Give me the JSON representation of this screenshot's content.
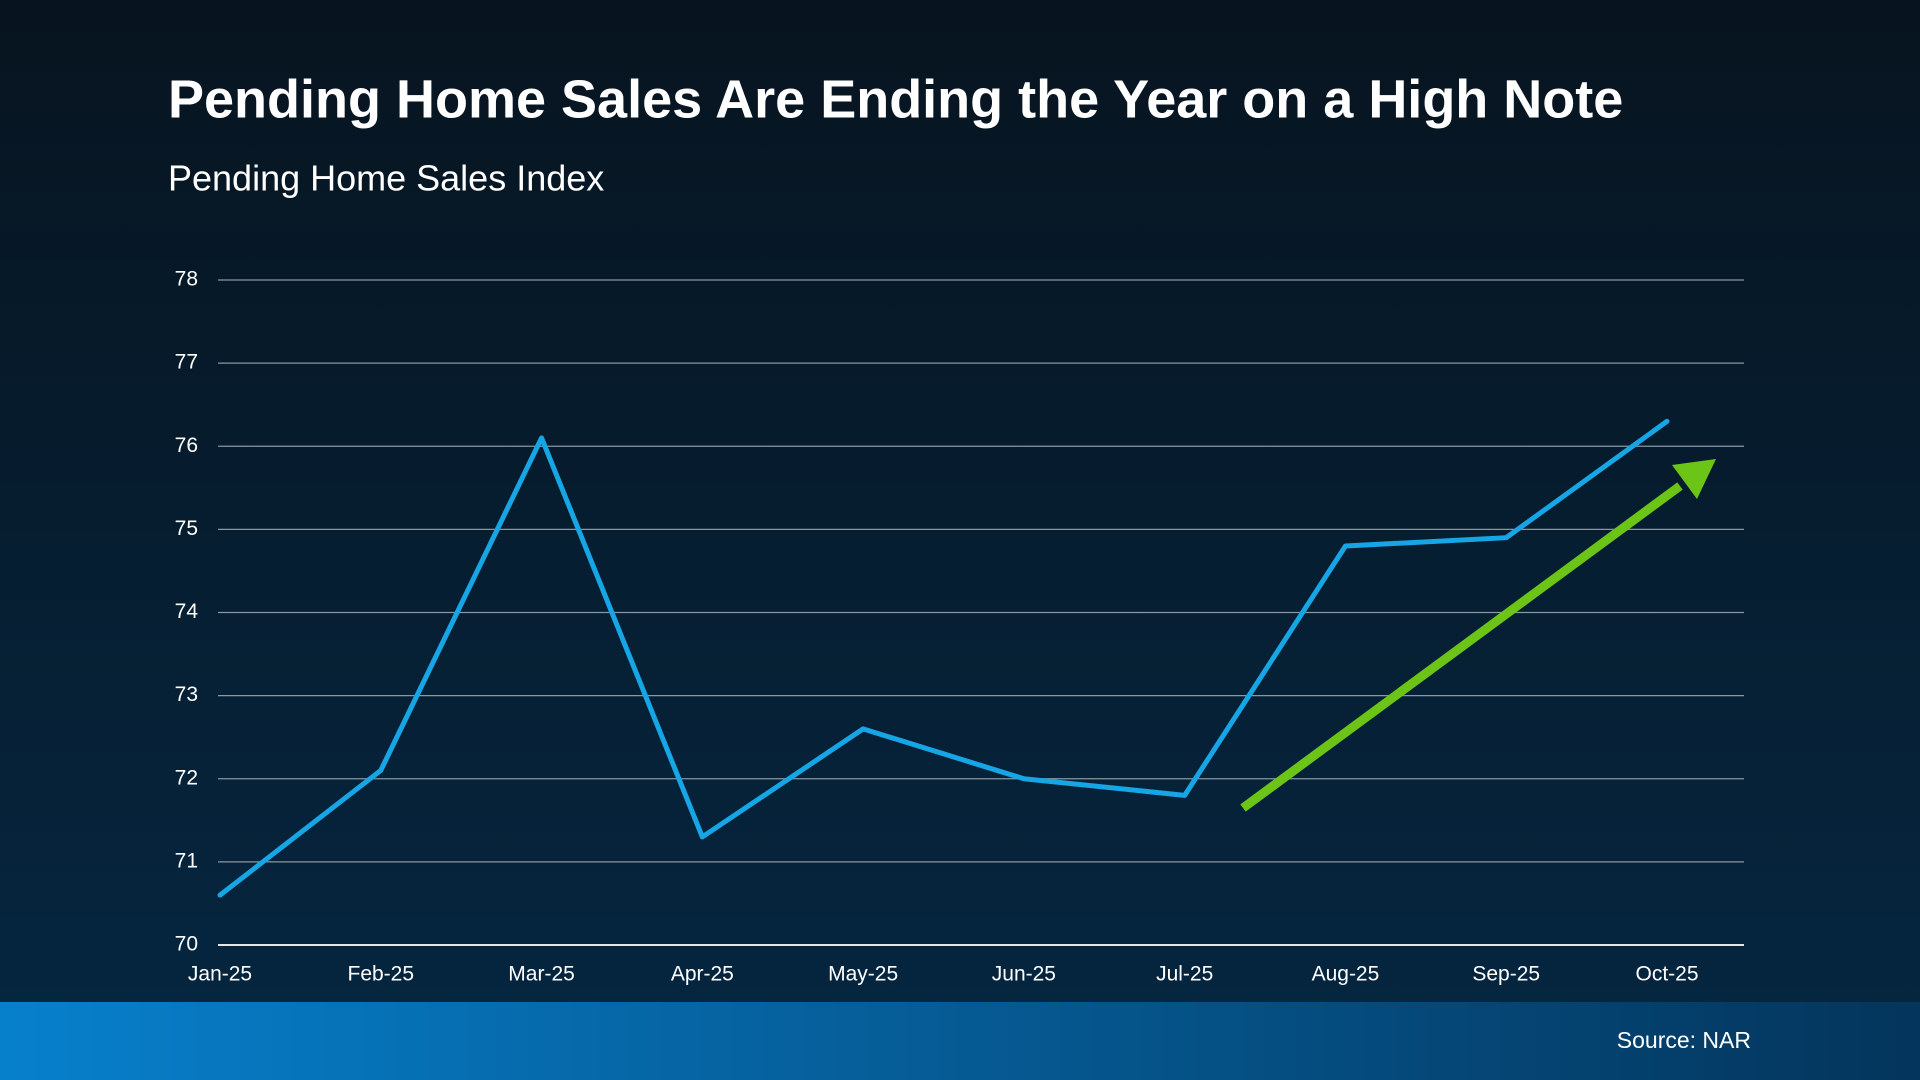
{
  "chart_data": {
    "type": "line",
    "title": "Pending Home Sales Are Ending the Year on a High Note",
    "subtitle": "Pending Home Sales Index",
    "categories": [
      "Jan-25",
      "Feb-25",
      "Mar-25",
      "Apr-25",
      "May-25",
      "Jun-25",
      "Jul-25",
      "Aug-25",
      "Sep-25",
      "Oct-25"
    ],
    "values": [
      70.6,
      72.1,
      76.1,
      71.3,
      72.6,
      72.0,
      71.8,
      74.8,
      74.9,
      76.3
    ],
    "color": "#16a6e6",
    "ylim": [
      70,
      78
    ],
    "yticks": [
      70,
      71,
      72,
      73,
      74,
      75,
      76,
      77,
      78
    ],
    "grid": true,
    "source": "Source: NAR"
  }
}
